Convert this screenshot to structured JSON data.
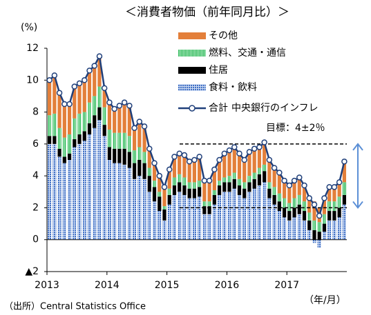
{
  "chart_data": {
    "type": "stacked_bar",
    "title": "＜消費者物価（前年同月比）＞",
    "y_label": "(%)",
    "x_label": "（年/月）",
    "source": "（出所）Central Statistics Office",
    "annotation": [
      "中央銀行のインフレ",
      "目標：4±2％"
    ],
    "target_lines": [
      6,
      2
    ],
    "categories": [
      "2013",
      null,
      null,
      null,
      null,
      null,
      null,
      null,
      null,
      null,
      null,
      null,
      "2014",
      null,
      null,
      null,
      null,
      null,
      null,
      null,
      null,
      null,
      null,
      null,
      "2015",
      null,
      null,
      null,
      null,
      null,
      null,
      null,
      null,
      null,
      null,
      null,
      "2016",
      null,
      null,
      null,
      null,
      null,
      null,
      null,
      null,
      null,
      null,
      null,
      "2017",
      null,
      null,
      null,
      null,
      null,
      null,
      null,
      null,
      null,
      null,
      null
    ],
    "series": [
      {
        "name": "その他",
        "color": "#e37f3a",
        "values": [
          2.2,
          2.4,
          2.2,
          2.1,
          1.9,
          2.0,
          1.9,
          2.0,
          2.0,
          1.9,
          1.9,
          1.2,
          1.7,
          1.5,
          1.7,
          1.9,
          1.9,
          1.4,
          1.6,
          1.6,
          1.2,
          1.1,
          1.0,
          1.2,
          1.2,
          1.3,
          1.3,
          1.4,
          1.3,
          1.4,
          1.5,
          1.3,
          1.3,
          1.3,
          1.3,
          1.5,
          1.6,
          1.6,
          1.6,
          1.4,
          1.5,
          1.5,
          1.3,
          1.4,
          1.4,
          1.2,
          1.3,
          1.1,
          1.1,
          1.1,
          1.1,
          1.0,
          0.9,
          1.2,
          0.9,
          1.0,
          0.9,
          0.9,
          0.9,
          1.3
        ]
      },
      {
        "name": "燃料、交通・通信",
        "color": "#2fbf5f",
        "values": [
          1.3,
          1.4,
          1.3,
          1.2,
          1.2,
          1.3,
          1.3,
          1.2,
          1.3,
          1.2,
          1.3,
          1.1,
          1.1,
          1.0,
          1.0,
          1.0,
          1.0,
          0.8,
          0.8,
          0.7,
          0.5,
          0.4,
          0.3,
          0.2,
          0.4,
          0.5,
          0.5,
          0.5,
          0.4,
          0.4,
          0.4,
          0.3,
          0.3,
          0.3,
          0.3,
          0.3,
          0.4,
          0.4,
          0.4,
          0.4,
          0.4,
          0.4,
          0.4,
          0.4,
          0.4,
          0.5,
          0.5,
          0.6,
          0.5,
          0.6,
          0.6,
          0.6,
          0.5,
          0.6,
          0.6,
          0.6,
          0.6,
          0.6,
          0.7,
          0.8
        ]
      },
      {
        "name": "住居",
        "color": "#000000",
        "values": [
          0.5,
          0.5,
          0.5,
          0.4,
          0.4,
          0.5,
          0.6,
          0.6,
          0.7,
          0.8,
          0.8,
          0.7,
          0.8,
          0.9,
          0.9,
          1.0,
          1.0,
          1.0,
          1.0,
          1.0,
          1.0,
          0.9,
          0.9,
          0.7,
          0.6,
          0.6,
          0.6,
          0.6,
          0.6,
          0.6,
          0.6,
          0.5,
          0.5,
          0.6,
          0.6,
          0.6,
          0.6,
          0.6,
          0.6,
          0.6,
          0.6,
          0.6,
          0.7,
          0.7,
          0.6,
          0.6,
          0.6,
          0.6,
          0.6,
          0.6,
          0.6,
          0.6,
          0.6,
          0.6,
          0.5,
          0.5,
          0.6,
          0.6,
          0.6,
          0.6
        ]
      },
      {
        "name": "食料・飲料",
        "color": "#4f7fd0",
        "values": [
          6.0,
          6.0,
          5.2,
          4.8,
          5.0,
          5.8,
          6.0,
          6.2,
          6.6,
          7.0,
          7.5,
          6.5,
          5.0,
          4.8,
          4.8,
          4.7,
          4.5,
          3.8,
          4.0,
          3.8,
          3.0,
          2.4,
          1.8,
          1.2,
          2.2,
          2.8,
          3.0,
          2.8,
          2.6,
          2.6,
          2.7,
          1.6,
          1.6,
          2.2,
          2.8,
          3.0,
          3.0,
          3.2,
          2.8,
          2.6,
          3.0,
          3.2,
          3.4,
          3.6,
          2.6,
          2.2,
          1.8,
          1.4,
          1.2,
          1.4,
          1.6,
          1.2,
          0.6,
          -0.2,
          -0.5,
          0.5,
          1.2,
          1.2,
          1.4,
          2.2
        ]
      },
      {
        "name": "合計",
        "type": "line",
        "color": "#1f3f7a",
        "values": [
          10.0,
          10.3,
          9.2,
          8.5,
          8.5,
          9.6,
          9.8,
          10.0,
          10.6,
          10.9,
          11.5,
          9.5,
          8.6,
          8.2,
          8.4,
          8.6,
          8.4,
          7.0,
          7.4,
          7.1,
          5.7,
          4.8,
          4.0,
          3.3,
          4.4,
          5.2,
          5.4,
          5.3,
          4.9,
          5.0,
          5.2,
          3.7,
          3.7,
          4.4,
          5.0,
          5.4,
          5.6,
          5.8,
          5.4,
          5.0,
          5.5,
          5.7,
          5.8,
          6.1,
          5.0,
          4.5,
          4.2,
          3.7,
          3.4,
          3.7,
          3.9,
          3.4,
          2.6,
          2.2,
          1.5,
          2.6,
          3.3,
          3.3,
          3.6,
          4.9
        ]
      }
    ],
    "ylim": [
      -2,
      12
    ],
    "yticks": [
      {
        "value": -2,
        "label": "▲2"
      },
      0,
      2,
      4,
      6,
      8,
      10,
      12
    ]
  }
}
